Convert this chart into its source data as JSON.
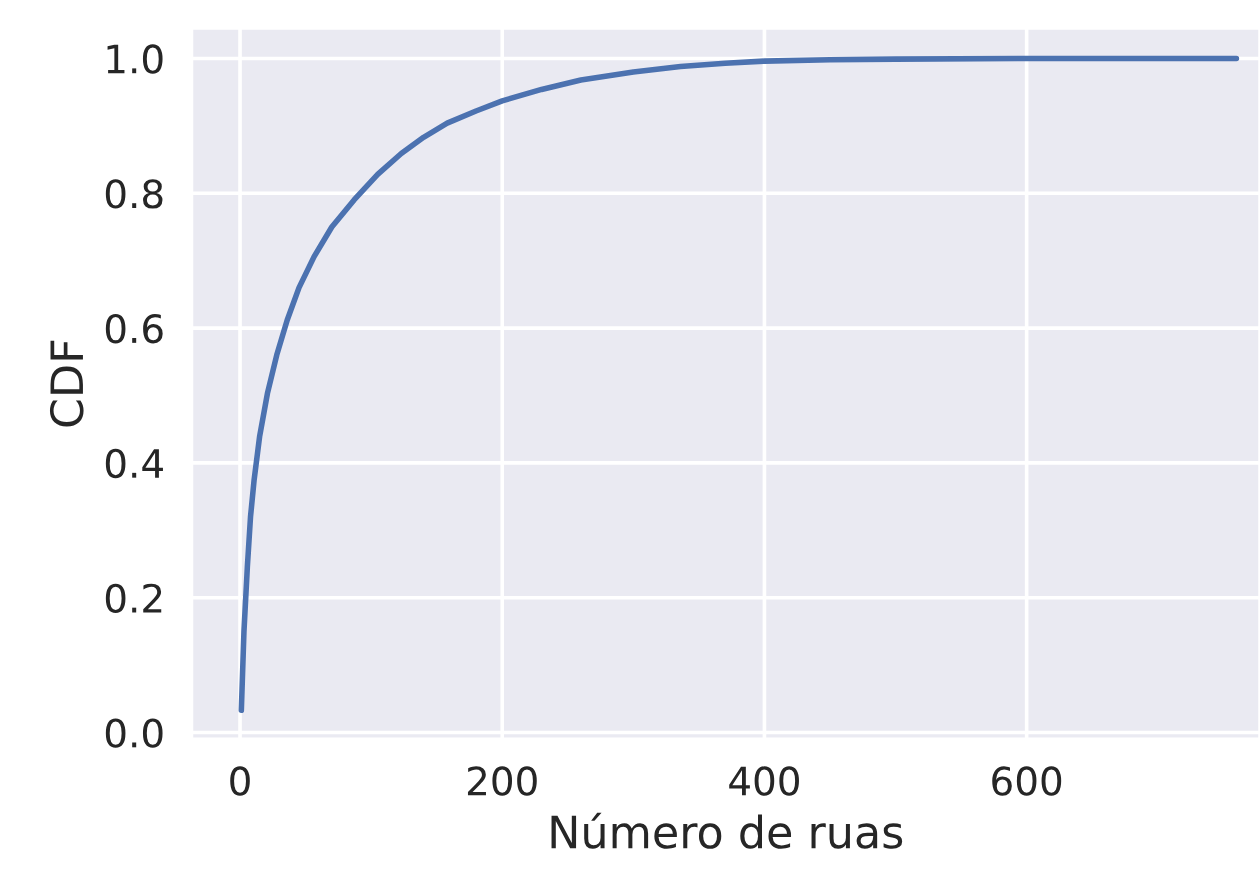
{
  "chart_data": {
    "type": "line",
    "xlabel": "Número de ruas",
    "ylabel": "CDF",
    "x": [
      1,
      3,
      5.6,
      8,
      10.7,
      15,
      20.9,
      28,
      36,
      45,
      56.5,
      70,
      87,
      105,
      123,
      140,
      158,
      180,
      200,
      230,
      260,
      300,
      336,
      370,
      400,
      450,
      500,
      600,
      760
    ],
    "series": [
      {
        "color": "#4c72b0",
        "values": [
          0.033,
          0.15,
          0.246,
          0.32,
          0.374,
          0.44,
          0.503,
          0.56,
          0.612,
          0.66,
          0.706,
          0.75,
          0.79,
          0.828,
          0.859,
          0.883,
          0.904,
          0.922,
          0.937,
          0.954,
          0.968,
          0.98,
          0.988,
          0.993,
          0.996,
          0.998,
          0.999,
          1.0,
          1.0
        ]
      }
    ],
    "xlim": [
      -37,
      778
    ],
    "ylim": [
      -0.01,
      1.045
    ],
    "xticks": [
      0,
      200,
      400,
      600
    ],
    "yticks": [
      {
        "value": 0,
        "label": "0.0"
      },
      {
        "value": 0.2,
        "label": "0.2"
      },
      {
        "value": 0.4,
        "label": "0.4"
      },
      {
        "value": 0.6,
        "label": "0.6"
      },
      {
        "value": 0.8,
        "label": "0.8"
      },
      {
        "value": 1.0,
        "label": "1.0"
      }
    ],
    "grid": true,
    "legend": false,
    "marker": "none",
    "line_style": "solid"
  }
}
